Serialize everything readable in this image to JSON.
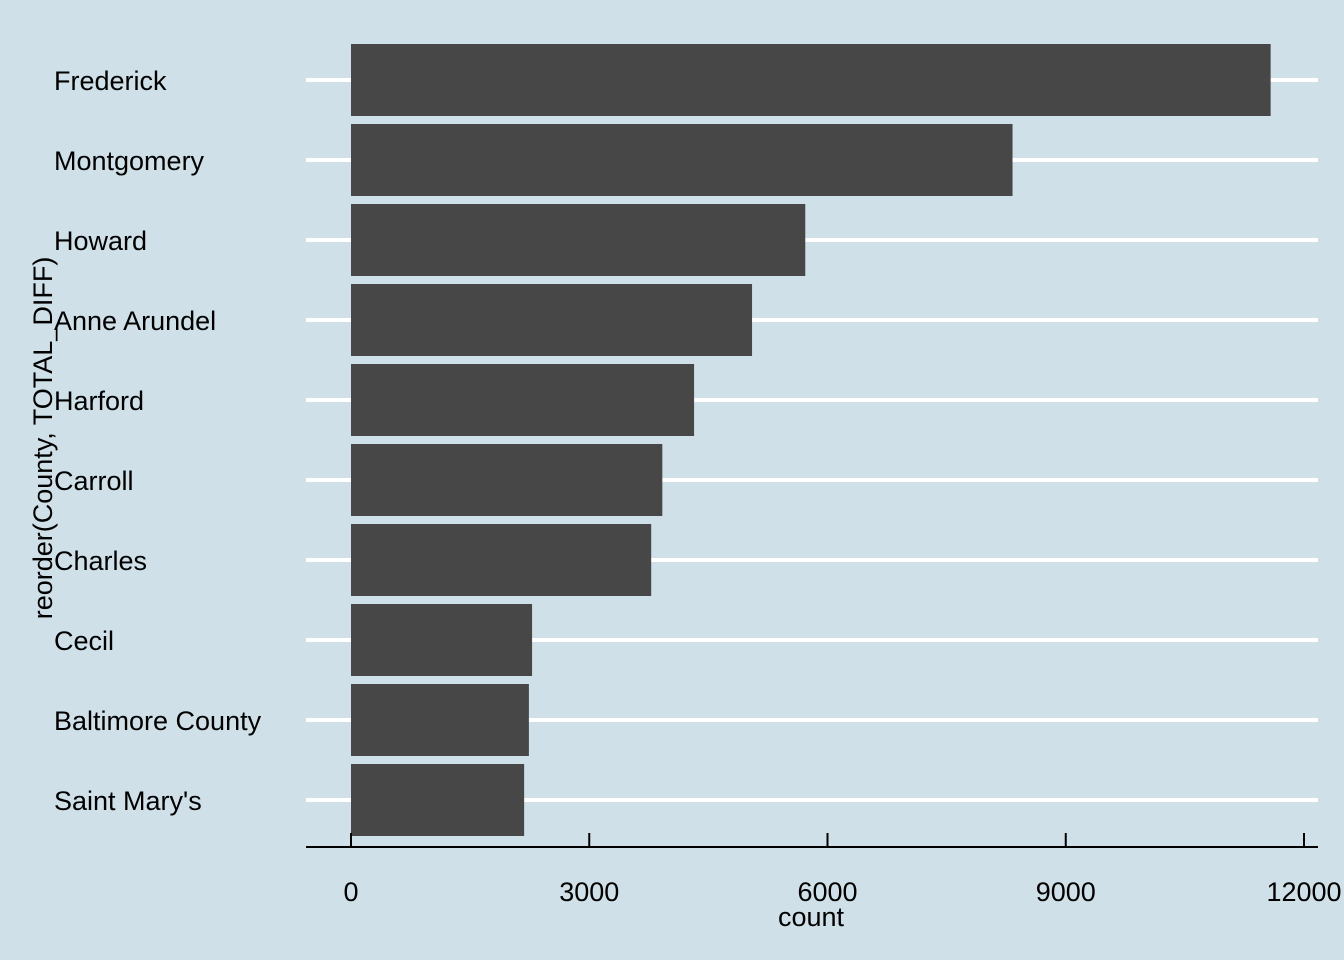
{
  "chart_data": {
    "type": "bar",
    "orientation": "horizontal",
    "categories": [
      "Frederick",
      "Montgomery",
      "Howard",
      "Anne Arundel",
      "Harford",
      "Carroll",
      "Charles",
      "Cecil",
      "Baltimore County",
      "Saint Mary's"
    ],
    "values": [
      11580,
      8330,
      5720,
      5050,
      4320,
      3920,
      3780,
      2280,
      2240,
      2180
    ],
    "xlabel": "count",
    "ylabel": "reorder(County, TOTAL_DIFF)",
    "xlim": [
      0,
      12000
    ],
    "xticks": [
      0,
      3000,
      6000,
      9000,
      12000
    ],
    "xtick_labels": [
      "0",
      "3000",
      "6000",
      "9000",
      "12000"
    ],
    "grid": "horizontal major lines only",
    "legend": "none",
    "colors": {
      "background": "#cfe0e8",
      "bar": "#474747",
      "grid": "#ffffff",
      "axis": "#000000"
    }
  }
}
